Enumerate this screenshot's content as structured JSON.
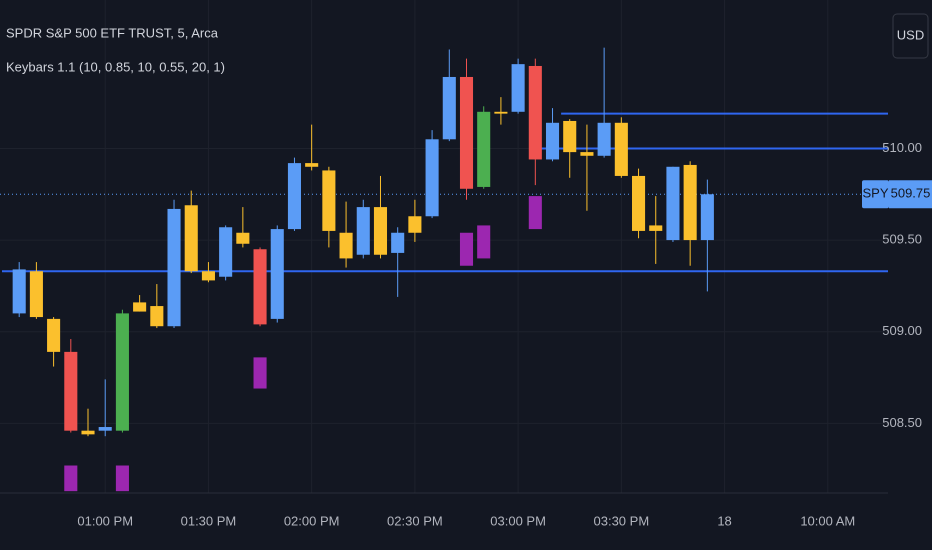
{
  "chart_data": {
    "type": "candlestick",
    "title": "SPDR S&P 500 ETF TRUST, 5, Arca",
    "indicator": "Keybars 1.1 (10, 0.85, 10, 0.55, 20, 1)",
    "currency": "USD",
    "symbol": "SPY",
    "last_price": {
      "value": 509.75,
      "label": "509.75"
    },
    "x": [
      1,
      2,
      3,
      4,
      5,
      6,
      7,
      8,
      9,
      10,
      11,
      12,
      13,
      14,
      15,
      16,
      17,
      18,
      19,
      20,
      21,
      22,
      23,
      24,
      25,
      26,
      27,
      28,
      29,
      30,
      31,
      32,
      33,
      34,
      35,
      36,
      37,
      38,
      39,
      40,
      41
    ],
    "series": [
      {
        "open": [
          509.1,
          509.33,
          509.07,
          508.89,
          508.46,
          508.46,
          508.46,
          509.16,
          509.14,
          509.03,
          509.69,
          509.33,
          509.3,
          509.54,
          509.45,
          509.07,
          509.56,
          509.92,
          509.88,
          509.54,
          509.42,
          509.68,
          509.43,
          509.63,
          509.63,
          510.05,
          510.39,
          509.79,
          510.2,
          510.2,
          510.45,
          509.94,
          510.15,
          509.98,
          509.96,
          510.14,
          509.85,
          509.58,
          509.5,
          509.91,
          509.5
        ],
        "high": [
          509.38,
          509.38,
          509.08,
          508.96,
          508.58,
          508.74,
          509.12,
          509.2,
          509.26,
          509.72,
          509.77,
          509.38,
          509.58,
          509.68,
          509.46,
          509.58,
          509.95,
          510.13,
          509.9,
          509.71,
          509.72,
          509.85,
          509.57,
          509.72,
          510.1,
          510.54,
          510.49,
          510.23,
          510.28,
          510.49,
          510.49,
          510.22,
          510.16,
          510.13,
          510.55,
          510.17,
          509.89,
          509.74,
          509.9,
          509.93,
          509.83
        ],
        "low": [
          509.08,
          509.07,
          508.81,
          508.45,
          508.43,
          508.43,
          508.45,
          509.11,
          509.02,
          509.02,
          509.32,
          509.27,
          509.28,
          509.46,
          509.03,
          509.05,
          509.55,
          509.88,
          509.46,
          509.35,
          509.4,
          509.4,
          509.19,
          509.49,
          509.62,
          510.04,
          509.72,
          509.78,
          510.13,
          510.19,
          509.8,
          509.93,
          509.84,
          509.66,
          509.95,
          509.84,
          509.51,
          509.37,
          509.49,
          509.36,
          509.22
        ],
        "close": [
          509.34,
          509.08,
          508.89,
          508.46,
          508.44,
          508.48,
          509.1,
          509.11,
          509.03,
          509.67,
          509.33,
          509.28,
          509.57,
          509.48,
          509.04,
          509.56,
          509.92,
          509.9,
          509.55,
          509.4,
          509.68,
          509.42,
          509.54,
          509.54,
          510.05,
          510.39,
          509.78,
          510.2,
          510.19,
          510.46,
          509.94,
          510.14,
          509.98,
          509.96,
          510.14,
          509.85,
          509.55,
          509.55,
          509.9,
          509.5,
          509.75
        ],
        "colors": [
          "#5b9cf6",
          "#fbc02d",
          "#fbc02d",
          "#f05350",
          "#fbc02d",
          "#5b9cf6",
          "#4caf50",
          "#fbc02d",
          "#fbc02d",
          "#5b9cf6",
          "#fbc02d",
          "#fbc02d",
          "#5b9cf6",
          "#fbc02d",
          "#f05350",
          "#5b9cf6",
          "#5b9cf6",
          "#fbc02d",
          "#fbc02d",
          "#fbc02d",
          "#5b9cf6",
          "#fbc02d",
          "#5b9cf6",
          "#fbc02d",
          "#5b9cf6",
          "#5b9cf6",
          "#f05350",
          "#4caf50",
          "#fbc02d",
          "#5b9cf6",
          "#f05350",
          "#5b9cf6",
          "#fbc02d",
          "#fbc02d",
          "#5b9cf6",
          "#fbc02d",
          "#fbc02d",
          "#fbc02d",
          "#5b9cf6",
          "#fbc02d",
          "#5b9cf6"
        ]
      }
    ],
    "signals": {
      "color": "#9c27b0",
      "x": [
        4,
        7,
        15,
        27,
        28,
        31
      ],
      "high": [
        508.27,
        508.27,
        508.86,
        509.54,
        509.58,
        509.74
      ],
      "low": [
        508.13,
        508.13,
        508.69,
        509.36,
        509.4,
        509.56
      ]
    },
    "levels": {
      "color": "#2f66f0",
      "start": [
        0,
        30.75,
        32.5
      ],
      "values": [
        509.33,
        510.0,
        510.19
      ]
    },
    "ylim": [
      508.12,
      510.81
    ],
    "yticks": [
      {
        "value": 508.5,
        "label": "508.50"
      },
      {
        "value": 509,
        "label": "509.00"
      },
      {
        "value": 509.5,
        "label": "509.50"
      },
      {
        "value": 510,
        "label": "510.00"
      }
    ],
    "xlim": [
      -0.1156,
      51.5
    ],
    "xticks": [
      {
        "value": 6,
        "label": "01:00 PM"
      },
      {
        "value": 12,
        "label": "01:30 PM"
      },
      {
        "value": 18,
        "label": "02:00 PM"
      },
      {
        "value": 24,
        "label": "02:30 PM"
      },
      {
        "value": 30,
        "label": "03:00 PM"
      },
      {
        "value": 36,
        "label": "03:30 PM"
      },
      {
        "value": 42,
        "label": "18"
      },
      {
        "value": 48,
        "label": "10:00 AM"
      }
    ],
    "grid": true
  }
}
